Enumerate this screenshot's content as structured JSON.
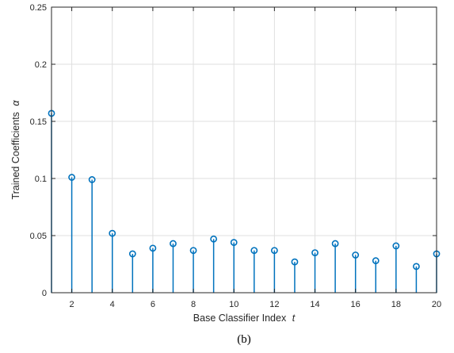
{
  "chart_data": {
    "type": "stem",
    "xlabel_text": "Base Classifier Index",
    "xlabel_var": "t",
    "ylabel_text": "Trained Coefficients",
    "ylabel_var": "α",
    "caption": "(b)",
    "x": [
      1,
      2,
      3,
      4,
      5,
      6,
      7,
      8,
      9,
      10,
      11,
      12,
      13,
      14,
      15,
      16,
      17,
      18,
      19,
      20
    ],
    "values": [
      0.157,
      0.101,
      0.099,
      0.052,
      0.034,
      0.039,
      0.043,
      0.037,
      0.047,
      0.044,
      0.037,
      0.037,
      0.027,
      0.035,
      0.043,
      0.033,
      0.028,
      0.041,
      0.023,
      0.034
    ],
    "xlim": [
      1,
      20
    ],
    "ylim": [
      0,
      0.25
    ],
    "xticks": [
      2,
      4,
      6,
      8,
      10,
      12,
      14,
      16,
      18,
      20
    ],
    "xtick_labels": [
      "2",
      "4",
      "6",
      "8",
      "10",
      "12",
      "14",
      "16",
      "18",
      "20"
    ],
    "yticks": [
      0,
      0.05,
      0.1,
      0.15,
      0.2,
      0.25
    ],
    "ytick_labels": [
      "0",
      "0.05",
      "0.1",
      "0.15",
      "0.2",
      "0.25"
    ],
    "grid": true,
    "color": "#0072BD"
  }
}
